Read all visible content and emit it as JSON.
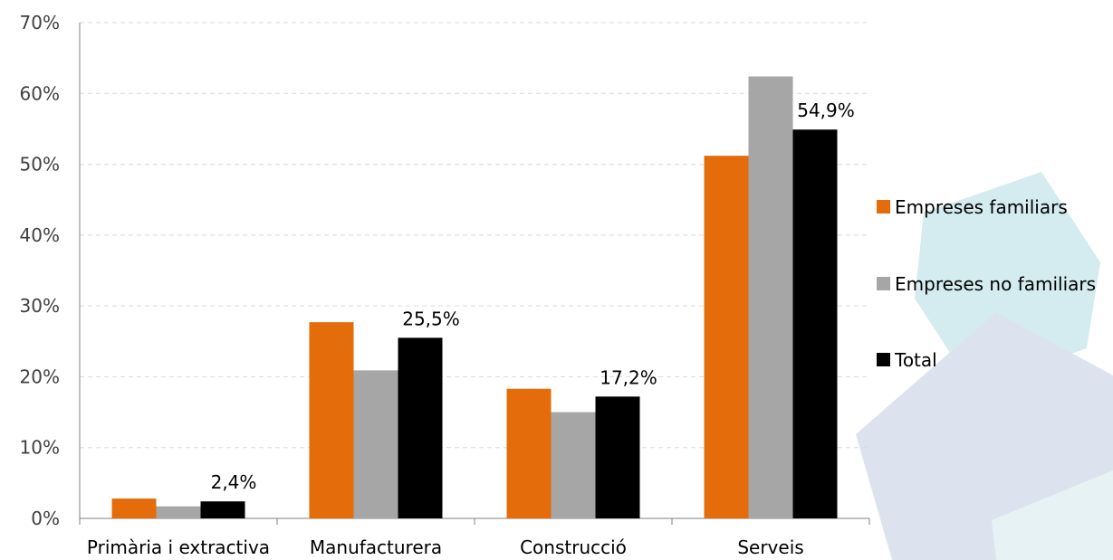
{
  "chart_data": {
    "type": "bar",
    "title": "",
    "xlabel": "",
    "ylabel": "",
    "ylim": [
      0,
      70
    ],
    "y_ticks": [
      "0%",
      "10%",
      "20%",
      "30%",
      "40%",
      "50%",
      "60%",
      "70%"
    ],
    "y_tick_values": [
      0,
      10,
      20,
      30,
      40,
      50,
      60,
      70
    ],
    "grid": true,
    "legend_position": "right",
    "categories": [
      "Primària i extractiva",
      "Manufacturera",
      "Construcció",
      "Serveis"
    ],
    "series": [
      {
        "name": "Empreses familiars",
        "color": "#E46C0A",
        "values": [
          2.8,
          27.7,
          18.3,
          51.2
        ]
      },
      {
        "name": "Empreses no familiars",
        "color": "#A6A6A6",
        "values": [
          1.7,
          20.9,
          15.0,
          62.4
        ]
      },
      {
        "name": "Total",
        "color": "#000000",
        "values": [
          2.4,
          25.5,
          17.2,
          54.9
        ]
      }
    ],
    "data_labels": [
      {
        "series": 2,
        "category": 0,
        "text": "2,4%"
      },
      {
        "series": 2,
        "category": 1,
        "text": "25,5%"
      },
      {
        "series": 2,
        "category": 2,
        "text": "17,2%"
      },
      {
        "series": 2,
        "category": 3,
        "text": "54,9%"
      }
    ]
  }
}
